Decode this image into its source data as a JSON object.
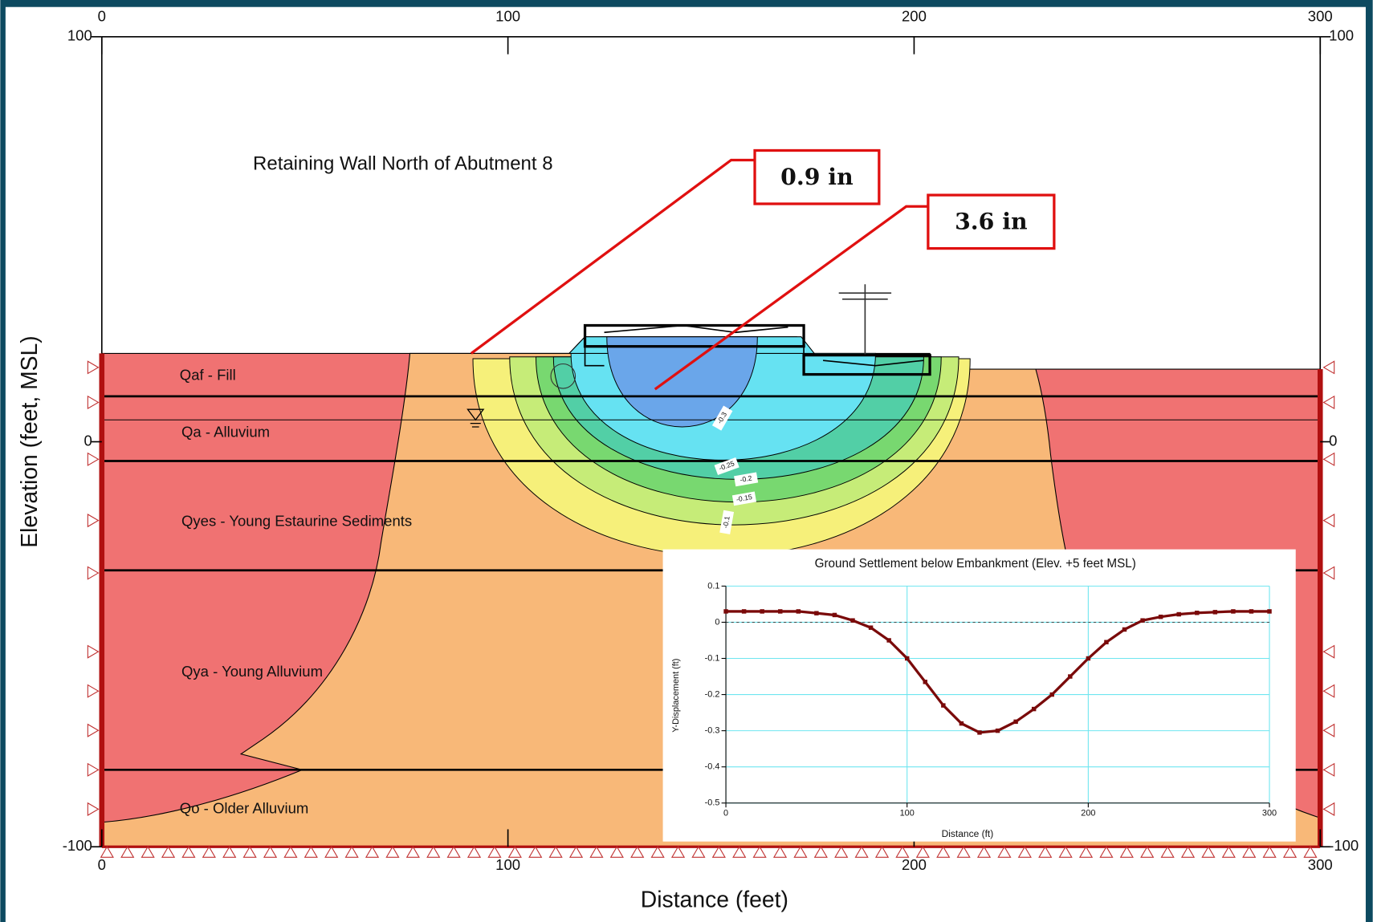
{
  "chart_data": [
    {
      "type": "contour",
      "title": "Retaining Wall North of Abutment 8",
      "x_label": "Distance (feet)",
      "y_label": "Elevation (feet, MSL)",
      "xlim": [
        0,
        300
      ],
      "ylim": [
        -100,
        100
      ],
      "xticks": [
        0,
        100,
        200,
        300
      ],
      "yticks": [
        -100,
        0,
        100
      ],
      "layer_labels": [
        "Qaf - Fill",
        "Qa - Alluvium",
        "Qyes - Young Estaurine Sediments",
        "Qya - Young Alluvium",
        "Qo - Older Alluvium"
      ],
      "contour_labels": [
        "-0.3",
        "-0.25",
        "-0.2",
        "-0.15",
        "-0.1"
      ],
      "annotations": [
        "0.9 in",
        "3.6 in"
      ]
    },
    {
      "type": "line",
      "title": "Ground Settlement below Embankment (Elev. +5 feet MSL)",
      "x_label": "Distance (ft)",
      "y_label": "Y-Displacement (ft)",
      "xlim": [
        0,
        300
      ],
      "ylim": [
        -0.5,
        0.1
      ],
      "xticks": [
        0,
        100,
        200,
        300
      ],
      "yticks": [
        -0.5,
        -0.4,
        -0.3,
        -0.2,
        -0.1,
        0,
        0.1
      ],
      "grid": true,
      "color": "#7a0a0a",
      "x": [
        0,
        10,
        20,
        30,
        40,
        50,
        60,
        70,
        80,
        90,
        100,
        110,
        120,
        130,
        140,
        150,
        160,
        170,
        180,
        190,
        200,
        210,
        220,
        230,
        240,
        250,
        260,
        270,
        280,
        290,
        300
      ],
      "values": [
        0.03,
        0.03,
        0.03,
        0.03,
        0.03,
        0.025,
        0.02,
        0.005,
        -0.015,
        -0.05,
        -0.1,
        -0.165,
        -0.23,
        -0.28,
        -0.305,
        -0.3,
        -0.275,
        -0.24,
        -0.2,
        -0.15,
        -0.1,
        -0.055,
        -0.02,
        0.005,
        0.015,
        0.022,
        0.026,
        0.028,
        0.03,
        0.03,
        0.03
      ]
    }
  ]
}
